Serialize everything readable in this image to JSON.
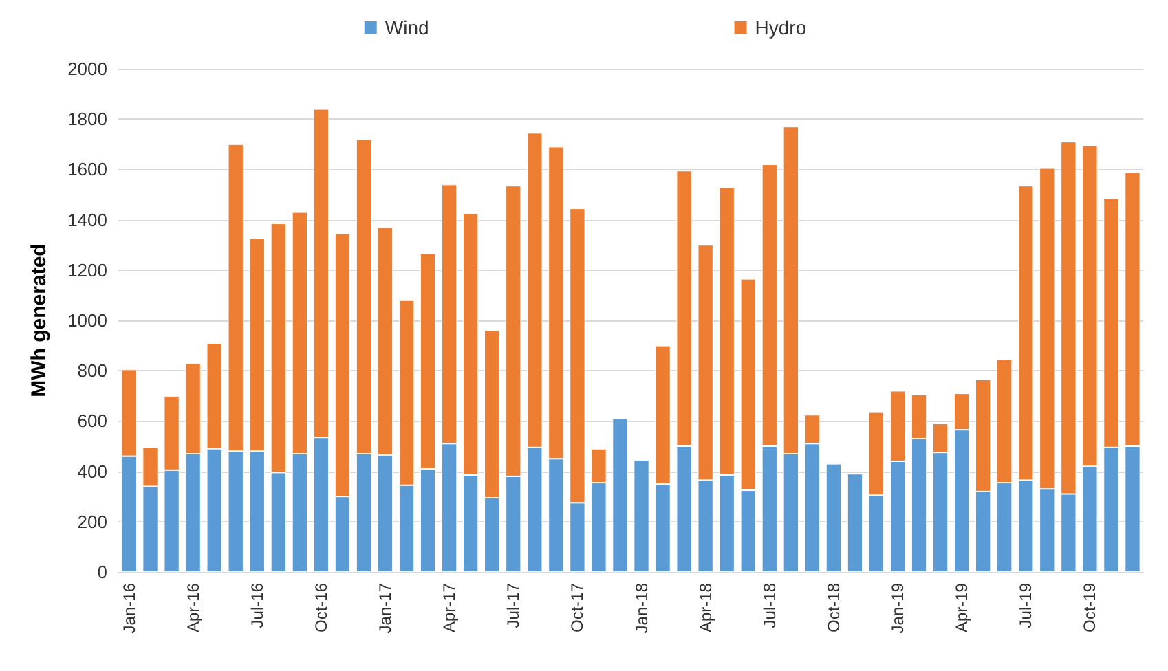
{
  "chart_data": {
    "type": "bar",
    "stacked": true,
    "ylabel": "MWh generated",
    "categories": [
      "Jan-16",
      null,
      null,
      "Apr-16",
      null,
      null,
      "Jul-16",
      null,
      null,
      "Oct-16",
      null,
      null,
      "Jan-17",
      null,
      null,
      "Apr-17",
      null,
      null,
      "Jul-17",
      null,
      null,
      "Oct-17",
      null,
      null,
      "Jan-18",
      null,
      null,
      "Apr-18",
      null,
      null,
      "Jul-18",
      null,
      null,
      "Oct-18",
      null,
      null,
      "Jan-19",
      null,
      null,
      "Apr-19",
      null,
      null,
      "Jul-19",
      null,
      null,
      "Oct-19",
      null,
      null
    ],
    "series": [
      {
        "name": "Wind",
        "color": "#5b9bd5",
        "values": [
          460,
          340,
          405,
          470,
          490,
          480,
          480,
          395,
          470,
          535,
          300,
          470,
          465,
          345,
          410,
          510,
          385,
          295,
          380,
          495,
          450,
          275,
          355,
          610,
          445,
          350,
          500,
          365,
          385,
          325,
          500,
          470,
          510,
          430,
          390,
          305,
          440,
          530,
          475,
          565,
          320,
          355,
          365,
          330,
          310,
          420,
          495,
          500
        ]
      },
      {
        "name": "Hydro",
        "color": "#ed7d31",
        "values": [
          345,
          155,
          295,
          360,
          420,
          1220,
          845,
          990,
          960,
          1305,
          1045,
          1250,
          905,
          735,
          855,
          1030,
          1040,
          665,
          1155,
          1250,
          1240,
          1170,
          135,
          null,
          null,
          550,
          1095,
          935,
          1145,
          840,
          1120,
          1300,
          115,
          null,
          null,
          330,
          280,
          175,
          115,
          145,
          445,
          490,
          1170,
          1275,
          1400,
          1275,
          990,
          1090
        ]
      }
    ],
    "ylim": [
      0,
      2000
    ],
    "yticks": [
      0,
      200,
      400,
      600,
      800,
      1000,
      1200,
      1400,
      1600,
      1800,
      2000
    ],
    "grid": "y",
    "legend": "top"
  }
}
